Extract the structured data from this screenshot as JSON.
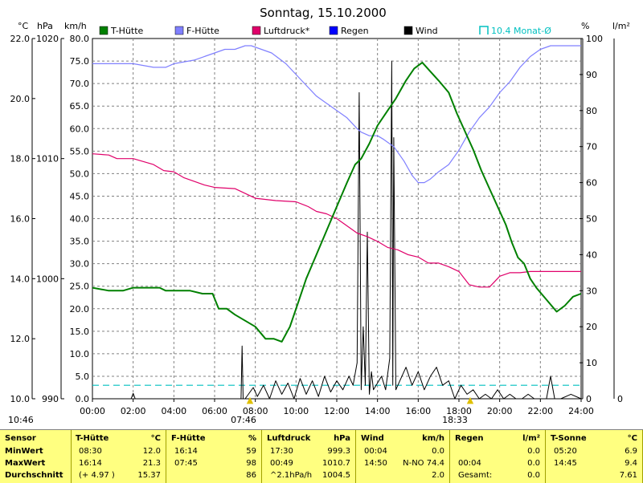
{
  "title": "Sonntag, 15.10.2000",
  "axis_units": {
    "temp": "°C",
    "pressure": "hPa",
    "wind": "km/h",
    "humidity": "%",
    "rain": "l/m²"
  },
  "axes": {
    "temp_ticks": [
      "22.0",
      "20.0",
      "18.0",
      "16.0",
      "14.0",
      "12.0",
      "10.0"
    ],
    "pressure_ticks": [
      "1020",
      "1010",
      "1000",
      "990"
    ],
    "wind_ticks": [
      "80.0",
      "75.0",
      "70.0",
      "65.0",
      "60.0",
      "55.0",
      "50.0",
      "45.0",
      "40.0",
      "35.0",
      "30.0",
      "25.0",
      "20.0",
      "15.0",
      "10.0",
      "5.0",
      "0.0"
    ],
    "humidity_ticks": [
      "100",
      "90",
      "80",
      "70",
      "60",
      "50",
      "40",
      "30",
      "20",
      "10",
      "0"
    ],
    "rain_ticks": [
      "0"
    ],
    "time_ticks": [
      "00:00",
      "02:00",
      "04:00",
      "06:00",
      "08:00",
      "10:00",
      "12:00",
      "14:00",
      "16:00",
      "18:00",
      "20:00",
      "22:00",
      "24:00"
    ]
  },
  "markers": {
    "sunrise": "07:46",
    "sunset": "18:33",
    "now": "10:46"
  },
  "legend": [
    {
      "label": "T-Hütte",
      "color": "#008000"
    },
    {
      "label": "F-Hütte",
      "color": "#8080ff"
    },
    {
      "label": "Luftdruck*",
      "color": "#e0006a"
    },
    {
      "label": "Regen",
      "color": "#0000ff"
    },
    {
      "label": "Wind",
      "color": "#000000"
    },
    {
      "label": "10.4 Monat-Ø",
      "color": "#00c0c0"
    }
  ],
  "chart_data": {
    "type": "line",
    "title": "Sonntag, 15.10.2000",
    "x_unit": "hour",
    "xlim": [
      0,
      24
    ],
    "series": [
      {
        "name": "T-Hütte",
        "unit": "°C",
        "axis": "temp",
        "ylim": [
          10,
          22
        ],
        "x": [
          0,
          0.8,
          1.5,
          2.0,
          2.5,
          3.0,
          3.3,
          3.6,
          4.2,
          4.5,
          4.8,
          5.4,
          5.9,
          6.2,
          6.6,
          7.0,
          7.5,
          8.0,
          8.5,
          8.9,
          9.3,
          9.7,
          10.1,
          10.5,
          11.0,
          11.5,
          12.0,
          12.5,
          12.9,
          13.2,
          13.6,
          14.0,
          14.5,
          14.9,
          15.4,
          15.8,
          16.2,
          16.6,
          17.0,
          17.5,
          17.9,
          18.3,
          18.7,
          19.1,
          19.5,
          19.9,
          20.3,
          20.6,
          20.9,
          21.2,
          21.5,
          21.8,
          22.3,
          22.8,
          23.2,
          23.6,
          24.0
        ],
        "values": [
          13.7,
          13.6,
          13.6,
          13.7,
          13.7,
          13.7,
          13.7,
          13.6,
          13.6,
          13.6,
          13.6,
          13.5,
          13.5,
          13.0,
          13.0,
          12.8,
          12.6,
          12.4,
          12.0,
          12.0,
          11.9,
          12.4,
          13.2,
          14.0,
          14.8,
          15.6,
          16.4,
          17.2,
          17.8,
          18.0,
          18.5,
          19.1,
          19.6,
          20.0,
          20.6,
          21.0,
          21.2,
          20.9,
          20.6,
          20.2,
          19.5,
          18.9,
          18.3,
          17.6,
          17.0,
          16.4,
          15.8,
          15.2,
          14.7,
          14.5,
          14.0,
          13.7,
          13.3,
          12.9,
          13.1,
          13.4,
          13.5
        ]
      },
      {
        "name": "F-Hütte",
        "unit": "%",
        "axis": "humidity",
        "ylim": [
          0,
          100
        ],
        "x": [
          0,
          1.0,
          2.0,
          3.0,
          3.6,
          4.0,
          5.0,
          6.0,
          6.5,
          7.0,
          7.5,
          7.8,
          8.3,
          8.8,
          9.5,
          10.0,
          10.5,
          11.0,
          11.5,
          12.0,
          12.5,
          13.0,
          13.2,
          13.6,
          14.0,
          14.3,
          14.8,
          15.3,
          15.7,
          16.0,
          16.3,
          16.6,
          17.0,
          17.5,
          18.0,
          18.5,
          19.0,
          19.5,
          20.0,
          20.5,
          21.0,
          21.5,
          22.0,
          22.5,
          23.0,
          23.5,
          24.0
        ],
        "values": [
          93,
          93,
          93,
          92,
          92,
          93,
          94,
          96,
          97,
          97,
          98,
          98,
          97,
          96,
          93,
          90,
          87,
          84,
          82,
          80,
          78,
          75,
          74,
          73,
          73,
          72,
          70,
          66,
          62,
          60,
          60,
          61,
          63,
          65,
          69,
          74,
          78,
          81,
          85,
          88,
          92,
          95,
          97,
          98,
          98,
          98,
          98
        ]
      },
      {
        "name": "Luftdruck*",
        "unit": "hPa",
        "axis": "pressure",
        "ylim": [
          990,
          1020
        ],
        "x": [
          0,
          0.8,
          1.2,
          2.0,
          3.0,
          3.5,
          4.0,
          4.5,
          5.0,
          5.5,
          6.0,
          7.0,
          7.5,
          8.0,
          9.0,
          10.0,
          10.6,
          11.0,
          11.5,
          12.0,
          12.5,
          13.0,
          13.5,
          14.0,
          14.5,
          15.0,
          15.5,
          16.0,
          16.5,
          17.0,
          17.5,
          18.0,
          18.5,
          19.0,
          19.5,
          20.0,
          20.5,
          21.0,
          21.5,
          22.0,
          22.5,
          23.0,
          23.5,
          24.0
        ],
        "values": [
          1010.4,
          1010.3,
          1010.0,
          1010.0,
          1009.5,
          1009.0,
          1008.9,
          1008.4,
          1008.1,
          1007.8,
          1007.6,
          1007.5,
          1007.1,
          1006.7,
          1006.5,
          1006.4,
          1006.0,
          1005.6,
          1005.4,
          1005.0,
          1004.4,
          1003.8,
          1003.5,
          1003.1,
          1002.6,
          1002.4,
          1002.0,
          1001.8,
          1001.3,
          1001.3,
          1001.0,
          1000.6,
          999.5,
          999.3,
          999.3,
          1000.2,
          1000.5,
          1000.5,
          1000.6,
          1000.6,
          1000.6,
          1000.6,
          1000.6,
          1000.6
        ]
      },
      {
        "name": "Wind",
        "unit": "km/h",
        "axis": "wind",
        "ylim": [
          0,
          80
        ],
        "x": [
          0,
          1.9,
          2.0,
          2.1,
          2.2,
          7.3,
          7.35,
          7.4,
          7.5,
          7.9,
          8.1,
          8.4,
          8.7,
          9.0,
          9.3,
          9.6,
          9.9,
          10.2,
          10.5,
          10.8,
          11.1,
          11.4,
          11.7,
          12.0,
          12.3,
          12.6,
          12.8,
          13.0,
          13.1,
          13.2,
          13.3,
          13.4,
          13.5,
          13.6,
          13.7,
          13.8,
          14.0,
          14.2,
          14.4,
          14.6,
          14.7,
          14.75,
          14.8,
          14.9,
          15.1,
          15.4,
          15.7,
          16.0,
          16.3,
          16.6,
          16.9,
          17.2,
          17.5,
          17.8,
          18.1,
          18.4,
          18.7,
          19.0,
          19.3,
          19.6,
          19.9,
          20.2,
          20.5,
          20.8,
          21.1,
          21.4,
          21.7,
          22.0,
          22.3,
          22.5,
          22.7,
          23.0,
          23.5,
          24.0
        ],
        "values": [
          0,
          0,
          1.2,
          0,
          0,
          0,
          11.7,
          0,
          0,
          2.5,
          0.5,
          3,
          0,
          4,
          1,
          3.5,
          0,
          4.5,
          1,
          4,
          0.5,
          5,
          1.5,
          4,
          2,
          5,
          3,
          8,
          68,
          2,
          16,
          3,
          37,
          1,
          6,
          2,
          3.5,
          5,
          2,
          9,
          75,
          3,
          58,
          2,
          4,
          7,
          3,
          6,
          2,
          5,
          7,
          3,
          4,
          0,
          3,
          1,
          2,
          0,
          1,
          0,
          2,
          0,
          1,
          0,
          0,
          1,
          0,
          0,
          0,
          5,
          0,
          0,
          1,
          0
        ]
      }
    ],
    "reference_lines": [
      {
        "name": "10.4 Monat-Ø",
        "axis": "wind",
        "value": 3.0
      }
    ],
    "rain_total": 0.0,
    "grid": true,
    "legend_position": "top"
  },
  "stats": {
    "sensor": {
      "header": "Sensor",
      "min": "MinWert",
      "max": "MaxWert",
      "avg": "Durchschnitt"
    },
    "columns": [
      {
        "name": "T-Hütte",
        "unit": "°C",
        "min_time": "08:30",
        "min": "12.0",
        "max_time": "16:14",
        "max": "21.3",
        "avg_note": "(+ 4.97 )",
        "avg": "15.37"
      },
      {
        "name": "F-Hütte",
        "unit": "%",
        "min_time": "16:14",
        "min": "59",
        "max_time": "07:45",
        "max": "98",
        "avg_note": "",
        "avg": "86"
      },
      {
        "name": "Luftdruck",
        "unit": "hPa",
        "min_time": "17:30",
        "min": "999.3",
        "max_time": "00:49",
        "max": "1010.7",
        "avg_note": "^2.1hPa/h",
        "avg": "1004.5"
      },
      {
        "name": "Wind",
        "unit": "km/h",
        "min_time": "00:04",
        "min": "0.0",
        "max_time": "14:50",
        "max": "N-NO 74.4",
        "avg_note": "",
        "avg": "2.0"
      },
      {
        "name": "Regen",
        "unit": "l/m²",
        "min_time": "",
        "min": "0.0",
        "max_time": "00:04",
        "max": "0.0",
        "avg_note": "Gesamt:",
        "avg": "0.0"
      },
      {
        "name": "T-Sonne",
        "unit": "°C",
        "min_time": "05:20",
        "min": "6.9",
        "max_time": "14:45",
        "max": "9.4",
        "avg_note": "",
        "avg": "7.61"
      }
    ]
  }
}
